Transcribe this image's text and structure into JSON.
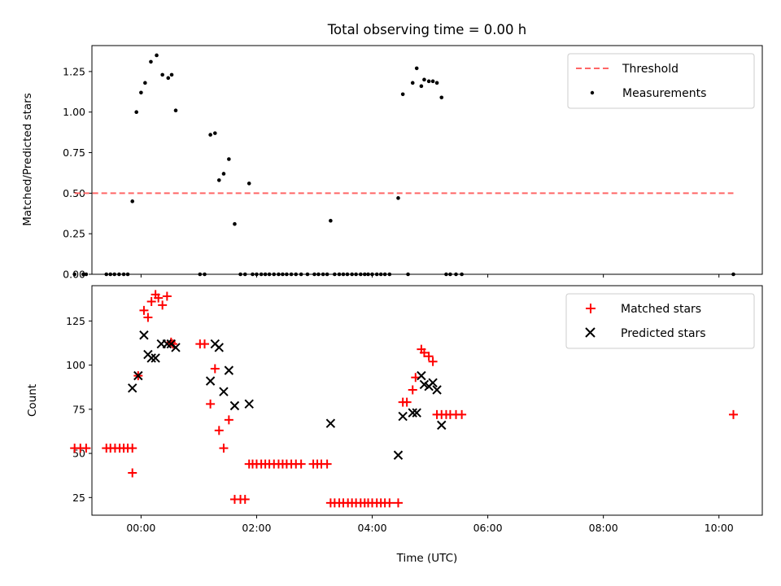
{
  "title": "Total observing time = 0.00 h",
  "chart_data": [
    {
      "type": "scatter",
      "ylabel": "Matched/Predicted stars",
      "ylim": [
        0.0,
        1.41
      ],
      "yticks": [
        0.0,
        0.25,
        0.5,
        0.75,
        1.0,
        1.25
      ],
      "ytick_labels": [
        "0.00",
        "0.25",
        "0.50",
        "0.75",
        "1.00",
        "1.25"
      ],
      "xlim": [
        -0.85,
        10.75
      ],
      "xticks": [
        0,
        2,
        4,
        6,
        8,
        10
      ],
      "legend_position": "upper right",
      "threshold": {
        "name": "Threshold",
        "value": 0.5,
        "x_range": [
          -1.15,
          10.25
        ],
        "color": "#ff6666"
      },
      "series": [
        {
          "name": "Measurements",
          "color": "#000000",
          "x": [
            -1.15,
            -1.0,
            -0.95,
            -0.6,
            -0.53,
            -0.46,
            -0.38,
            -0.3,
            -0.23,
            -0.15,
            -0.08,
            0.0,
            0.07,
            0.17,
            0.27,
            0.37,
            0.47,
            0.53,
            0.6,
            1.02,
            1.1,
            1.2,
            1.28,
            1.35,
            1.43,
            1.52,
            1.62,
            1.72,
            1.8,
            1.87,
            1.93,
            2.0,
            2.08,
            2.15,
            2.22,
            2.3,
            2.38,
            2.45,
            2.52,
            2.6,
            2.68,
            2.77,
            2.88,
            3.0,
            3.07,
            3.15,
            3.22,
            3.28,
            3.35,
            3.43,
            3.5,
            3.57,
            3.65,
            3.72,
            3.8,
            3.87,
            3.93,
            4.0,
            4.08,
            4.15,
            4.22,
            4.3,
            4.45,
            4.53,
            4.62,
            4.7,
            4.77,
            4.85,
            4.9,
            4.98,
            5.05,
            5.12,
            5.2,
            5.28,
            5.35,
            5.45,
            5.55,
            10.25
          ],
          "y": [
            0,
            0,
            0,
            0,
            0,
            0,
            0,
            0,
            0,
            0.45,
            1.0,
            1.12,
            1.18,
            1.31,
            1.35,
            1.23,
            1.21,
            1.23,
            1.01,
            0,
            0,
            0.86,
            0.87,
            0.58,
            0.62,
            0.71,
            0.31,
            0,
            0,
            0.56,
            0,
            0,
            0,
            0,
            0,
            0,
            0,
            0,
            0,
            0,
            0,
            0,
            0,
            0,
            0,
            0,
            0,
            0.33,
            0,
            0,
            0,
            0,
            0,
            0,
            0,
            0,
            0,
            0,
            0,
            0,
            0,
            0,
            0.47,
            1.11,
            0,
            1.18,
            1.27,
            1.16,
            1.2,
            1.19,
            1.19,
            1.18,
            1.09,
            0,
            0,
            0,
            0,
            0
          ]
        }
      ]
    },
    {
      "type": "scatter",
      "xlabel": "Time (UTC)",
      "ylabel": "Count",
      "ylim": [
        15,
        145
      ],
      "yticks": [
        25,
        50,
        75,
        100,
        125
      ],
      "ytick_labels": [
        "25",
        "50",
        "75",
        "100",
        "125"
      ],
      "xlim": [
        -0.85,
        10.75
      ],
      "xticks": [
        0,
        2,
        4,
        6,
        8,
        10
      ],
      "xtick_labels": [
        "00:00",
        "02:00",
        "04:00",
        "06:00",
        "08:00",
        "10:00"
      ],
      "legend_position": "upper right",
      "series": [
        {
          "name": "Matched stars",
          "marker": "+",
          "color": "#ff0000",
          "x": [
            -1.15,
            -1.05,
            -0.95,
            -0.6,
            -0.53,
            -0.45,
            -0.37,
            -0.3,
            -0.23,
            -0.15,
            -0.15,
            -0.05,
            0.05,
            0.12,
            0.18,
            0.25,
            0.3,
            0.37,
            0.45,
            0.52,
            0.55,
            1.02,
            1.1,
            1.2,
            1.28,
            1.35,
            1.43,
            1.52,
            1.62,
            1.72,
            1.8,
            1.87,
            1.93,
            2.0,
            2.08,
            2.15,
            2.22,
            2.3,
            2.38,
            2.45,
            2.52,
            2.6,
            2.68,
            2.77,
            2.98,
            3.05,
            3.12,
            3.22,
            3.28,
            3.35,
            3.43,
            3.5,
            3.58,
            3.65,
            3.72,
            3.8,
            3.87,
            3.93,
            4.0,
            4.08,
            4.15,
            4.22,
            4.3,
            4.45,
            4.53,
            4.6,
            4.7,
            4.75,
            4.85,
            4.9,
            4.98,
            5.05,
            5.12,
            5.2,
            5.28,
            5.35,
            5.45,
            5.55,
            10.25
          ],
          "y": [
            53,
            53,
            53,
            53,
            53,
            53,
            53,
            53,
            53,
            53,
            39,
            94,
            131,
            127,
            136,
            140,
            138,
            134,
            139,
            113,
            112,
            112,
            112,
            78,
            98,
            63,
            53,
            69,
            24,
            24,
            24,
            44,
            44,
            44,
            44,
            44,
            44,
            44,
            44,
            44,
            44,
            44,
            44,
            44,
            44,
            44,
            44,
            44,
            22,
            22,
            22,
            22,
            22,
            22,
            22,
            22,
            22,
            22,
            22,
            22,
            22,
            22,
            22,
            22,
            79,
            79,
            86,
            93,
            109,
            107,
            105,
            102,
            72,
            72,
            72,
            72,
            72,
            72,
            72
          ]
        },
        {
          "name": "Predicted stars",
          "marker": "x",
          "color": "#000000",
          "x": [
            -0.15,
            -0.05,
            0.05,
            0.12,
            0.18,
            0.25,
            0.35,
            0.45,
            0.52,
            0.6,
            1.2,
            1.28,
            1.35,
            1.43,
            1.52,
            1.62,
            1.87,
            3.28,
            4.45,
            4.53,
            4.7,
            4.77,
            4.85,
            4.9,
            4.98,
            5.05,
            5.12,
            5.2
          ],
          "y": [
            87,
            94,
            117,
            106,
            104,
            104,
            112,
            112,
            112,
            110,
            91,
            112,
            110,
            85,
            97,
            77,
            78,
            67,
            49,
            71,
            73,
            73,
            94,
            89,
            88,
            90,
            86,
            66
          ]
        }
      ]
    }
  ]
}
